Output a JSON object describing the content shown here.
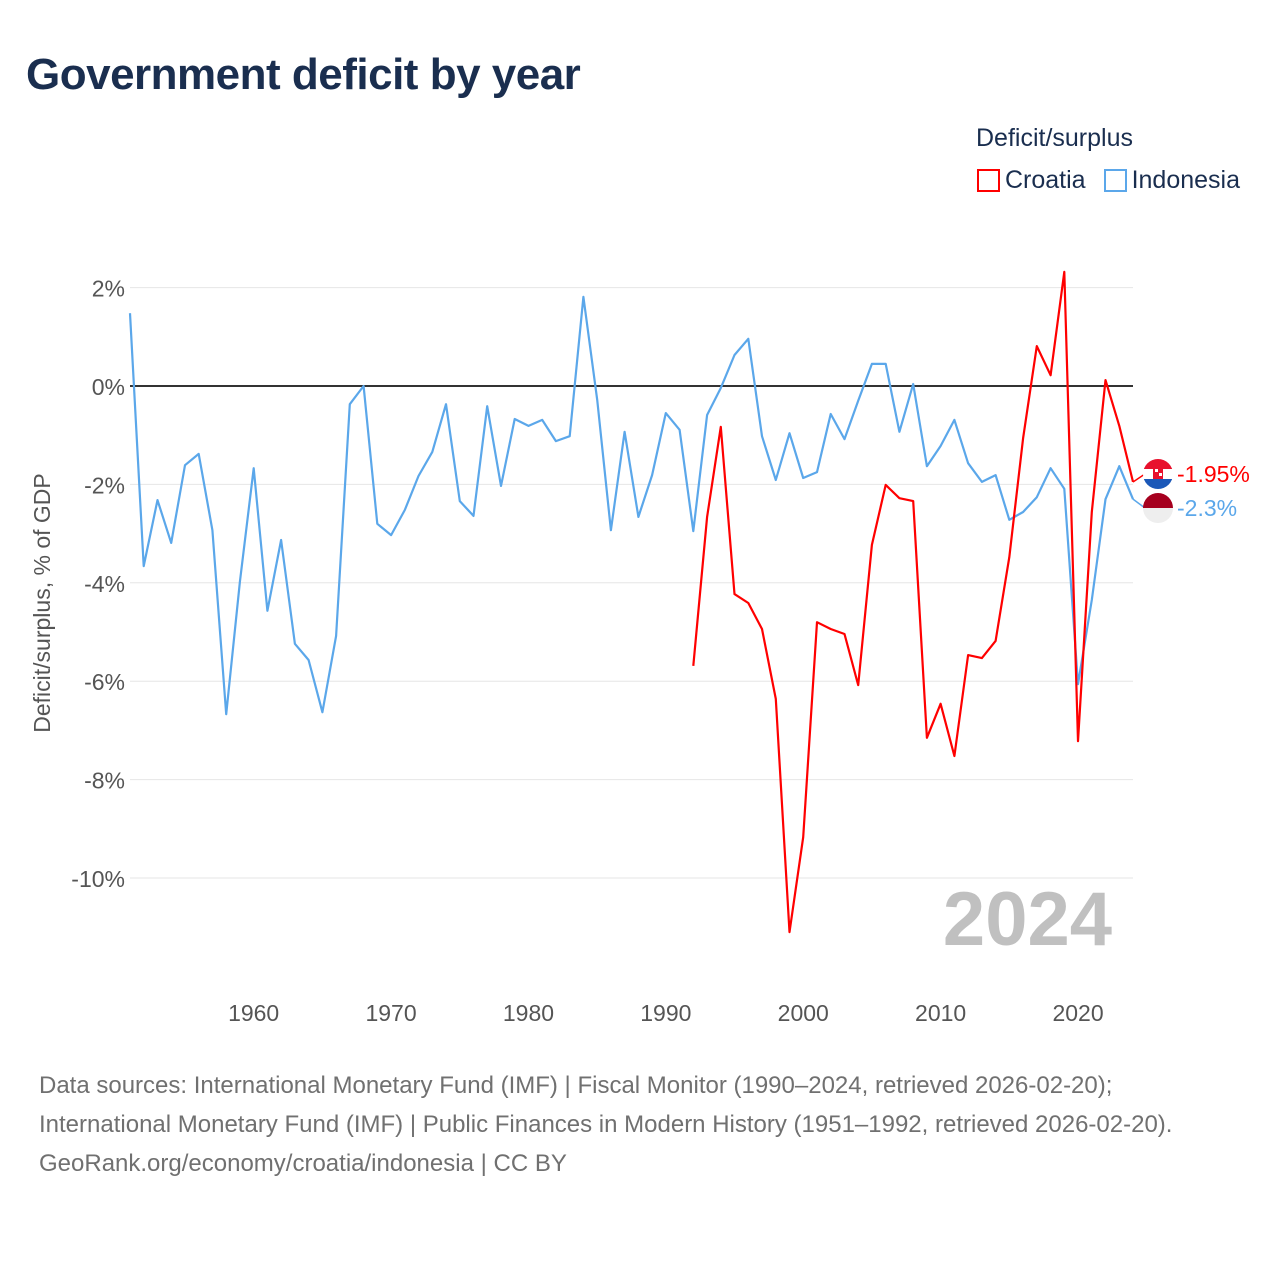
{
  "title": "Government deficit by year",
  "legend": {
    "title": "Deficit/surplus",
    "items": [
      {
        "label": "Croatia",
        "color": "#ff0000"
      },
      {
        "label": "Indonesia",
        "color": "#5ba7ea"
      }
    ]
  },
  "chart_data": {
    "type": "line",
    "title": "Government deficit by year",
    "xlabel": "",
    "ylabel": "Deficit/surplus, % of GDP",
    "xlim": [
      1951,
      2024
    ],
    "ylim": [
      -12,
      2.5
    ],
    "yticks": [
      2,
      0,
      -2,
      -4,
      -6,
      -8,
      -10
    ],
    "ytick_labels": [
      "2%",
      "0%",
      "-2%",
      "-4%",
      "-6%",
      "-8%",
      "-10%"
    ],
    "xticks": [
      1960,
      1970,
      1980,
      1990,
      2000,
      2010,
      2020
    ],
    "xtick_labels": [
      "1960",
      "1970",
      "1980",
      "1990",
      "2000",
      "2010",
      "2020"
    ],
    "grid": true,
    "year_watermark": "2024",
    "series": [
      {
        "name": "Croatia",
        "color": "#ff0000",
        "start_year": 1992,
        "end_label": "-1.95%",
        "flag": "croatia",
        "values": [
          -5.69,
          -2.66,
          -0.83,
          -4.23,
          -4.41,
          -4.94,
          -6.36,
          -11.1,
          -9.17,
          -4.8,
          -4.94,
          -5.04,
          -6.08,
          -3.23,
          -2.01,
          -2.28,
          -2.34,
          -7.15,
          -6.46,
          -7.52,
          -5.47,
          -5.53,
          -5.18,
          -3.48,
          -1.06,
          0.81,
          0.22,
          2.32,
          -7.22,
          -2.56,
          0.12,
          -0.81,
          -1.95
        ]
      },
      {
        "name": "Indonesia",
        "color": "#5ba7ea",
        "start_year": 1951,
        "end_label": "-2.3%",
        "flag": "indonesia",
        "values": [
          1.48,
          -3.66,
          -2.32,
          -3.19,
          -1.61,
          -1.38,
          -2.93,
          -6.67,
          -3.98,
          -1.67,
          -4.57,
          -3.13,
          -5.24,
          -5.57,
          -6.63,
          -5.08,
          -0.37,
          0,
          -2.8,
          -3.03,
          -2.52,
          -1.83,
          -1.34,
          -0.37,
          -2.34,
          -2.64,
          -0.41,
          -2.03,
          -0.67,
          -0.81,
          -0.69,
          -1.12,
          -1.02,
          1.81,
          -0.28,
          -2.93,
          -0.93,
          -2.66,
          -1.81,
          -0.55,
          -0.89,
          -2.95,
          -0.59,
          -0.04,
          0.63,
          0.96,
          -1.02,
          -1.91,
          -0.96,
          -1.87,
          -1.75,
          -0.57,
          -1.08,
          -0.3,
          0.45,
          0.45,
          -0.93,
          0.04,
          -1.63,
          -1.22,
          -0.69,
          -1.57,
          -1.95,
          -1.81,
          -2.72,
          -2.56,
          -2.26,
          -1.67,
          -2.09,
          -6.06,
          -4.35,
          -2.3,
          -1.63,
          -2.3
        ]
      }
    ]
  },
  "footer": {
    "sources": "Data sources: International Monetary Fund (IMF) | Fiscal Monitor (1990–2024, retrieved 2026-02-20); International Monetary Fund (IMF) | Public Finances in Modern History (1951–1992, retrieved 2026-02-20).",
    "link": "GeoRank.org/economy/croatia/indonesia | CC BY"
  }
}
